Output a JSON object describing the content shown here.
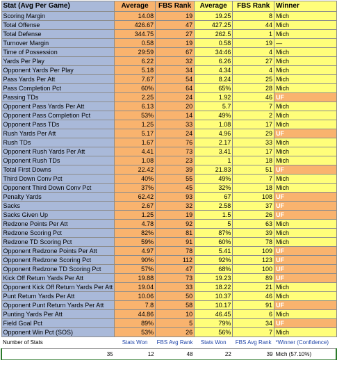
{
  "header": {
    "stat": "Stat (Avg Per Game)",
    "avg1": "Average",
    "rank1": "FBS Rank",
    "avg2": "Average",
    "rank2": "FBS Rank",
    "winner": "Winner"
  },
  "rows": [
    {
      "stat": "Scoring Margin",
      "avg1": "14.08",
      "rank1": "19",
      "avg2": "19.25",
      "rank2": "8",
      "winner": "Mich",
      "left_winner": false
    },
    {
      "stat": "Total Offense",
      "avg1": "426.67",
      "rank1": "47",
      "avg2": "427.25",
      "rank2": "44",
      "winner": "Mich",
      "left_winner": false
    },
    {
      "stat": "Total Defense",
      "avg1": "344.75",
      "rank1": "27",
      "avg2": "262.5",
      "rank2": "1",
      "winner": "Mich",
      "left_winner": false
    },
    {
      "stat": "Turnover Margin",
      "avg1": "0.58",
      "rank1": "19",
      "avg2": "0.58",
      "rank2": "19",
      "winner": "—",
      "left_winner": false
    },
    {
      "stat": "Time of Possession",
      "avg1": "29:59",
      "rank1": "67",
      "avg2": "34:46",
      "rank2": "4",
      "winner": "Mich",
      "left_winner": false
    },
    {
      "stat": "Yards Per Play",
      "avg1": "6.22",
      "rank1": "32",
      "avg2": "6.26",
      "rank2": "27",
      "winner": "Mich",
      "left_winner": false
    },
    {
      "stat": "Opponent Yards Per Play",
      "avg1": "5.18",
      "rank1": "34",
      "avg2": "4.34",
      "rank2": "4",
      "winner": "Mich",
      "left_winner": false
    },
    {
      "stat": "Pass Yards Per Att",
      "avg1": "7.67",
      "rank1": "54",
      "avg2": "8.24",
      "rank2": "25",
      "winner": "Mich",
      "left_winner": false
    },
    {
      "stat": "Pass Completion Pct",
      "avg1": "60%",
      "rank1": "64",
      "avg2": "65%",
      "rank2": "28",
      "winner": "Mich",
      "left_winner": false
    },
    {
      "stat": "Passing TDs",
      "avg1": "2.25",
      "rank1": "24",
      "avg2": "1.92",
      "rank2": "46",
      "winner": "UF",
      "left_winner": true
    },
    {
      "stat": "Opponent Pass Yards Per Att",
      "avg1": "6.13",
      "rank1": "20",
      "avg2": "5.7",
      "rank2": "7",
      "winner": "Mich",
      "left_winner": false
    },
    {
      "stat": "Opponent Pass Completion Pct",
      "avg1": "53%",
      "rank1": "14",
      "avg2": "49%",
      "rank2": "2",
      "winner": "Mich",
      "left_winner": false
    },
    {
      "stat": "Opponent Pass TDs",
      "avg1": "1.25",
      "rank1": "33",
      "avg2": "1.08",
      "rank2": "17",
      "winner": "Mich",
      "left_winner": false
    },
    {
      "stat": "Rush Yards Per Att",
      "avg1": "5.17",
      "rank1": "24",
      "avg2": "4.96",
      "rank2": "29",
      "winner": "UF",
      "left_winner": true
    },
    {
      "stat": "Rush TDs",
      "avg1": "1.67",
      "rank1": "76",
      "avg2": "2.17",
      "rank2": "33",
      "winner": "Mich",
      "left_winner": false
    },
    {
      "stat": "Opponent Rush Yards Per Att",
      "avg1": "4.41",
      "rank1": "73",
      "avg2": "3.41",
      "rank2": "17",
      "winner": "Mich",
      "left_winner": false
    },
    {
      "stat": "Opponent Rush TDs",
      "avg1": "1.08",
      "rank1": "23",
      "avg2": "1",
      "rank2": "18",
      "winner": "Mich",
      "left_winner": false
    },
    {
      "stat": "Total First Downs",
      "avg1": "22.42",
      "rank1": "39",
      "avg2": "21.83",
      "rank2": "51",
      "winner": "UF",
      "left_winner": true
    },
    {
      "stat": "Third Down Conv Pct",
      "avg1": "40%",
      "rank1": "55",
      "avg2": "49%",
      "rank2": "7",
      "winner": "Mich",
      "left_winner": false
    },
    {
      "stat": "Opponent Third Down Conv Pct",
      "avg1": "37%",
      "rank1": "45",
      "avg2": "32%",
      "rank2": "18",
      "winner": "Mich",
      "left_winner": false
    },
    {
      "stat": "Penalty Yards",
      "avg1": "62.42",
      "rank1": "93",
      "avg2": "67",
      "rank2": "108",
      "winner": "UF",
      "left_winner": true
    },
    {
      "stat": "Sacks",
      "avg1": "2.67",
      "rank1": "32",
      "avg2": "2.58",
      "rank2": "37",
      "winner": "UF",
      "left_winner": true
    },
    {
      "stat": "Sacks Given Up",
      "avg1": "1.25",
      "rank1": "19",
      "avg2": "1.5",
      "rank2": "26",
      "winner": "UF",
      "left_winner": true
    },
    {
      "stat": "Redzone Points Per Att",
      "avg1": "4.78",
      "rank1": "92",
      "avg2": "5",
      "rank2": "63",
      "winner": "Mich",
      "left_winner": false
    },
    {
      "stat": "Redzone Scoring Pct",
      "avg1": "82%",
      "rank1": "81",
      "avg2": "87%",
      "rank2": "39",
      "winner": "Mich",
      "left_winner": false
    },
    {
      "stat": "Redzone TD Scoring Pct",
      "avg1": "59%",
      "rank1": "91",
      "avg2": "60%",
      "rank2": "78",
      "winner": "Mich",
      "left_winner": false
    },
    {
      "stat": "Opponent Redzone Points Per Att",
      "avg1": "4.97",
      "rank1": "78",
      "avg2": "5.41",
      "rank2": "109",
      "winner": "UF",
      "left_winner": true
    },
    {
      "stat": "Opponent Redzone Scoring Pct",
      "avg1": "90%",
      "rank1": "112",
      "avg2": "92%",
      "rank2": "123",
      "winner": "UF",
      "left_winner": true
    },
    {
      "stat": "Opponent Redzone TD Scoring Pct",
      "avg1": "57%",
      "rank1": "47",
      "avg2": "68%",
      "rank2": "100",
      "winner": "UF",
      "left_winner": true
    },
    {
      "stat": "Kick Off Return Yards Per Att",
      "avg1": "19.88",
      "rank1": "73",
      "avg2": "19.23",
      "rank2": "89",
      "winner": "UF",
      "left_winner": true
    },
    {
      "stat": "Opponent Kick Off Return Yards Per Att",
      "avg1": "19.04",
      "rank1": "33",
      "avg2": "18.22",
      "rank2": "21",
      "winner": "Mich",
      "left_winner": false
    },
    {
      "stat": "Punt Return Yards Per Att",
      "avg1": "10.06",
      "rank1": "50",
      "avg2": "10.37",
      "rank2": "46",
      "winner": "Mich",
      "left_winner": false
    },
    {
      "stat": "Opponent Punt Return Yards Per Att",
      "avg1": "7.8",
      "rank1": "58",
      "avg2": "10.17",
      "rank2": "91",
      "winner": "UF",
      "left_winner": true
    },
    {
      "stat": "Punting Yards Per Att",
      "avg1": "44.86",
      "rank1": "10",
      "avg2": "46.45",
      "rank2": "6",
      "winner": "Mich",
      "left_winner": false
    },
    {
      "stat": "Field Goal Pct",
      "avg1": "89%",
      "rank1": "5",
      "avg2": "79%",
      "rank2": "34",
      "winner": "UF",
      "left_winner": true
    },
    {
      "stat": "Opponent Win Pct (SOS)",
      "avg1": "53%",
      "rank1": "26",
      "avg2": "56%",
      "rank2": "7",
      "winner": "Mich",
      "left_winner": false
    }
  ],
  "footer": {
    "number_of_stats": "Number of Stats",
    "stats_won1": "Stats Won",
    "fbs_avg_rank1": "FBS Avg Rank",
    "stats_won2": "Stats Won",
    "fbs_avg_rank2": "FBS Avg Rank",
    "winner_note": "*Winner (Confidence)"
  },
  "totals": {
    "number": "35",
    "won1": "12",
    "avg_rank1": "48",
    "won2": "22",
    "avg_rank2": "39",
    "winner": "Mich (57.10%)"
  }
}
